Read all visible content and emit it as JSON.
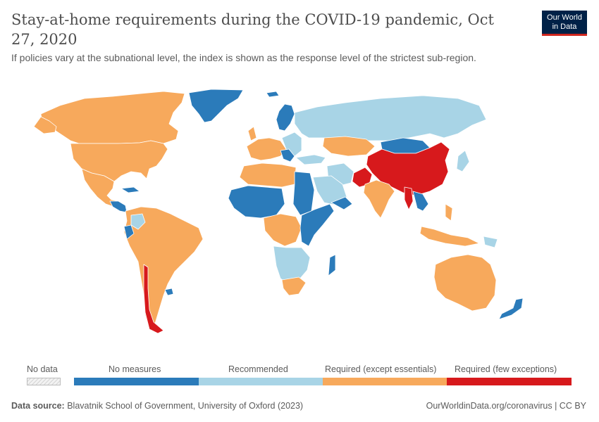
{
  "header": {
    "title": "Stay-at-home requirements during the COVID-19 pandemic, Oct 27, 2020",
    "subtitle": "If policies vary at the subnational level, the index is shown as the response level of the strictest sub-region."
  },
  "logo": {
    "line1": "Our World",
    "line2": "in Data"
  },
  "colors": {
    "no_measures": "#2b7bba",
    "recommended": "#a8d4e6",
    "required_except_essentials": "#f7a95c",
    "required_few_exceptions": "#d7191c",
    "no_data": "#e4e4e4",
    "border": "#ffffff"
  },
  "legend": {
    "no_data_label": "No data",
    "categories": [
      {
        "label": "No measures",
        "color": "#2b7bba"
      },
      {
        "label": "Recommended",
        "color": "#a8d4e6"
      },
      {
        "label": "Required (except essentials)",
        "color": "#f7a95c"
      },
      {
        "label": "Required (few exceptions)",
        "color": "#d7191c"
      }
    ]
  },
  "footer": {
    "source_label": "Data source:",
    "source_text": "Blavatnik School of Government, University of Oxford (2023)",
    "link": "OurWorldinData.org/coronavirus | CC BY"
  }
}
